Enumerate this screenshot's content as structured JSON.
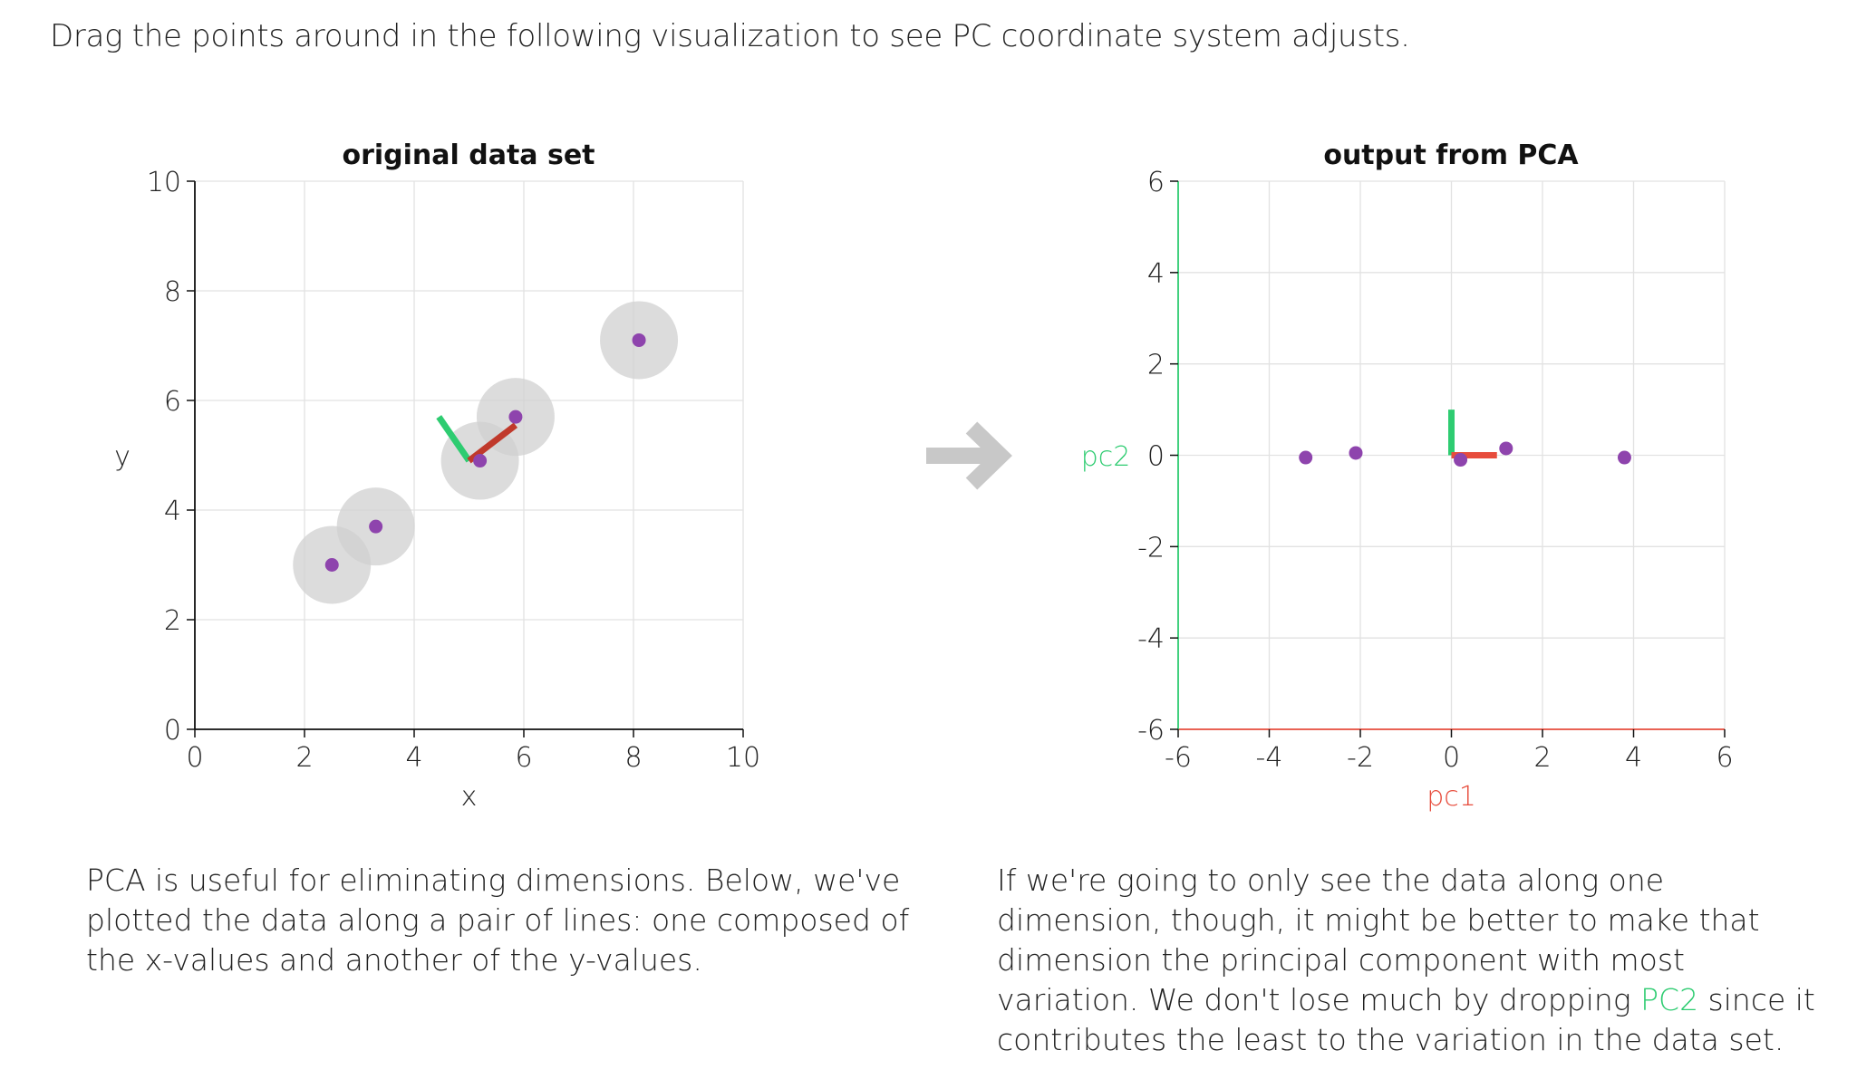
{
  "intro_text": "Drag the points around in the following visualization to see PC coordinate system adjusts.",
  "colors": {
    "point": "#8e44ad",
    "pc1": "#c0392b",
    "pc1_light": "#e74c3c",
    "pc2": "#2ecc71",
    "handle": "#d0d0d0",
    "arrow": "#c8c8c8"
  },
  "arrow_icon": "right-arrow-icon",
  "chart_data": [
    {
      "type": "scatter",
      "title": "original data set",
      "xlabel": "x",
      "ylabel": "y",
      "xlim": [
        0,
        10
      ],
      "ylim": [
        0,
        10
      ],
      "xticks": [
        0,
        2,
        4,
        6,
        8,
        10
      ],
      "yticks": [
        0,
        2,
        4,
        6,
        8,
        10
      ],
      "grid": true,
      "points": [
        {
          "x": 2.5,
          "y": 3.0
        },
        {
          "x": 3.3,
          "y": 3.7
        },
        {
          "x": 5.2,
          "y": 4.9
        },
        {
          "x": 5.85,
          "y": 5.7
        },
        {
          "x": 8.1,
          "y": 7.1
        }
      ],
      "pc_axes": {
        "origin": {
          "x": 5.0,
          "y": 4.9
        },
        "pc1_end": {
          "x": 5.85,
          "y": 5.55
        },
        "pc2_end": {
          "x": 4.45,
          "y": 5.7
        }
      }
    },
    {
      "type": "scatter",
      "title": "output from PCA",
      "xlabel": "pc1",
      "ylabel": "pc2",
      "xlim": [
        -6,
        6
      ],
      "ylim": [
        -6,
        6
      ],
      "xticks": [
        -6,
        -4,
        -2,
        0,
        2,
        4,
        6
      ],
      "yticks": [
        -6,
        -4,
        -2,
        0,
        2,
        4,
        6
      ],
      "grid": true,
      "points": [
        {
          "x": -3.2,
          "y": -0.05
        },
        {
          "x": -2.1,
          "y": 0.05
        },
        {
          "x": 0.2,
          "y": -0.1
        },
        {
          "x": 1.2,
          "y": 0.15
        },
        {
          "x": 3.8,
          "y": -0.05
        }
      ],
      "pc_axes": {
        "origin": {
          "x": 0,
          "y": 0
        },
        "pc1_end": {
          "x": 1.0,
          "y": 0
        },
        "pc2_end": {
          "x": 0,
          "y": 1.0
        }
      }
    }
  ],
  "para_left": "PCA is useful for eliminating dimensions. Below, we've plotted the data along a pair of lines: one composed of the x-values and another of the y-values.",
  "para_right": {
    "before": "If we're going to only see the data along one dimension, though, it might be better to make that dimension the principal component with most variation. We don't lose much by dropping ",
    "highlight": "PC2",
    "after": " since it contributes the least to the variation in the data set."
  }
}
